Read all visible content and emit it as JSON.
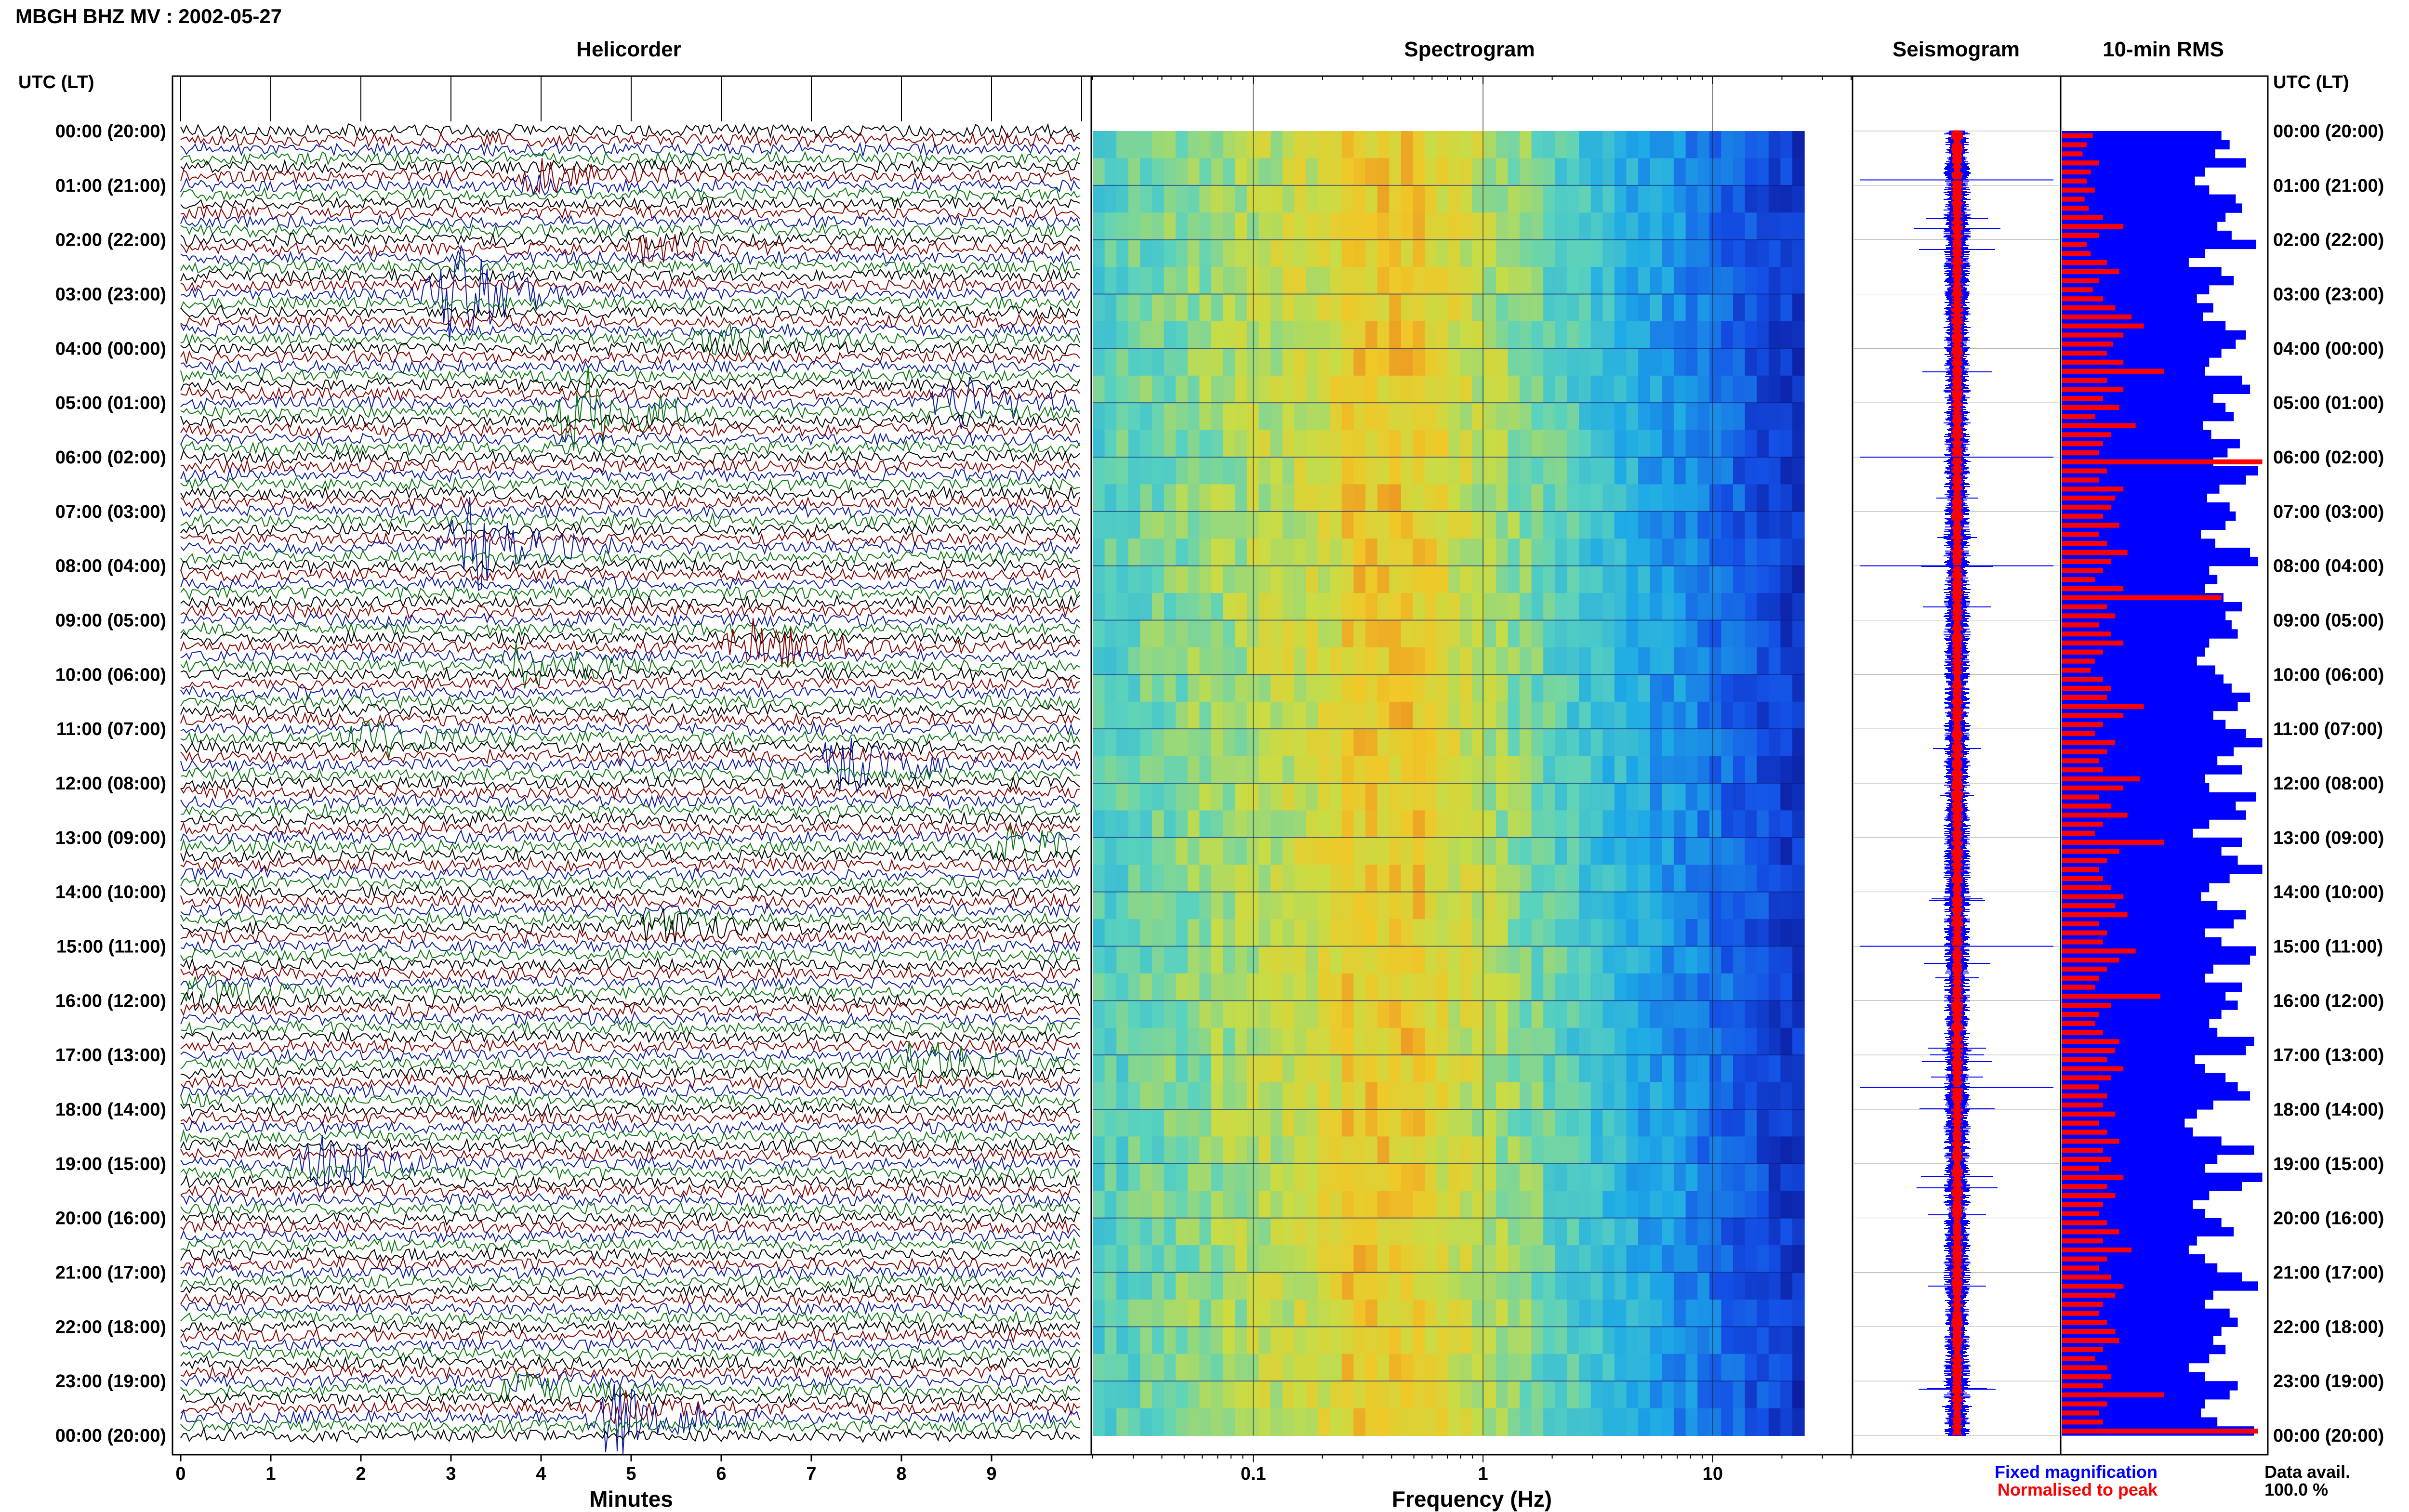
{
  "header": {
    "station_title": "MBGH BHZ MV : 2002-05-27",
    "utc_lt_label": "UTC (LT)"
  },
  "panels": {
    "helicorder_title": "Helicorder",
    "spectrogram_title": "Spectrogram",
    "seismogram_title": "Seismogram",
    "rms_title": "10-min RMS"
  },
  "legend": {
    "fixed_magnification": "Fixed magnification",
    "normalised_to_peak": "Normalised to peak",
    "data_avail_label": "Data avail.",
    "data_avail_value": "100.0 %"
  },
  "colors": {
    "trace_cycle": [
      "#000000",
      "#8b0000",
      "#0b1aa8",
      "#0a7a10"
    ],
    "fixed_magnification": "#0000ff",
    "normalised_to_peak": "#ff0000"
  },
  "chart_data": [
    {
      "type": "line",
      "name": "helicorder",
      "title": "Helicorder",
      "xlabel": "Minutes",
      "x_ticks": [
        "0",
        "1",
        "2",
        "3",
        "4",
        "5",
        "6",
        "7",
        "8",
        "9"
      ],
      "xlim": [
        0,
        10
      ],
      "row_labels": [
        "00:00 (20:00)",
        "01:00 (21:00)",
        "02:00 (22:00)",
        "03:00 (23:00)",
        "04:00 (00:00)",
        "05:00 (01:00)",
        "06:00 (02:00)",
        "07:00 (03:00)",
        "08:00 (04:00)",
        "09:00 (05:00)",
        "10:00 (06:00)",
        "11:00 (07:00)",
        "12:00 (08:00)",
        "13:00 (09:00)",
        "14:00 (10:00)",
        "15:00 (11:00)",
        "16:00 (12:00)",
        "17:00 (13:00)",
        "18:00 (14:00)",
        "19:00 (15:00)",
        "20:00 (16:00)",
        "21:00 (17:00)",
        "22:00 (18:00)",
        "23:00 (19:00)",
        "00:00 (20:00)"
      ],
      "traces_per_hour": 6,
      "events": [
        {
          "hour": 0.9,
          "minute": 4.0,
          "amplitude": 0.6,
          "color": "#0b1aa8"
        },
        {
          "hour": 2.1,
          "minute": 5.2,
          "amplitude": 0.5,
          "color": "#8b0000"
        },
        {
          "hour": 3.0,
          "minute": 3.0,
          "amplitude": 0.9,
          "color": "#0b1aa8"
        },
        {
          "hour": 3.9,
          "minute": 6.0,
          "amplitude": 0.6,
          "color": "#8b0000"
        },
        {
          "hour": 5.2,
          "minute": 4.4,
          "amplitude": 1.3,
          "color": "#000000"
        },
        {
          "hour": 5.0,
          "minute": 8.6,
          "amplitude": 0.5,
          "color": "#000000"
        },
        {
          "hour": 7.7,
          "minute": 3.2,
          "amplitude": 1.1,
          "color": "#8b0000"
        },
        {
          "hour": 9.5,
          "minute": 6.3,
          "amplitude": 0.5,
          "color": "#0a7a10"
        },
        {
          "hour": 9.8,
          "minute": 3.8,
          "amplitude": 0.6,
          "color": "#000000"
        },
        {
          "hour": 11.2,
          "minute": 2.1,
          "amplitude": 0.5,
          "color": "#8b0000"
        },
        {
          "hour": 11.7,
          "minute": 7.3,
          "amplitude": 0.7,
          "color": "#000000"
        },
        {
          "hour": 13.2,
          "minute": 9.3,
          "amplitude": 0.5,
          "color": "#000000"
        },
        {
          "hour": 14.6,
          "minute": 5.3,
          "amplitude": 0.8,
          "color": "#8b0000"
        },
        {
          "hour": 15.9,
          "minute": 0.3,
          "amplitude": 0.5,
          "color": "#8b0000"
        },
        {
          "hour": 17.2,
          "minute": 8.2,
          "amplitude": 0.7,
          "color": "#8b0000"
        },
        {
          "hour": 19.0,
          "minute": 1.6,
          "amplitude": 0.5,
          "color": "#0a7a10"
        },
        {
          "hour": 23.6,
          "minute": 4.8,
          "amplitude": 1.5,
          "color": "#0a7a10"
        },
        {
          "hour": 23.1,
          "minute": 3.8,
          "amplitude": 0.6,
          "color": "#0b1aa8"
        }
      ]
    },
    {
      "type": "heatmap",
      "name": "spectrogram",
      "title": "Spectrogram",
      "xlabel": "Frequency (Hz)",
      "x_scale": "log",
      "x_ticks": [
        "0.1",
        "1",
        "10"
      ],
      "xlim": [
        0.02,
        40
      ],
      "band_peak_hz": [
        0.25,
        0.5
      ],
      "spectrum_cutoff_hz": 25,
      "hours": 24
    },
    {
      "type": "line",
      "name": "seismogram",
      "title": "Seismogram",
      "series": [
        {
          "name": "Fixed magnification",
          "color": "#0000ff"
        },
        {
          "name": "Normalised to peak",
          "color": "#ff0000"
        }
      ],
      "hours": 24
    },
    {
      "type": "bar",
      "name": "10-min RMS",
      "title": "10-min RMS",
      "orientation": "horizontal",
      "row_labels": [
        "00:00 (20:00)",
        "01:00 (21:00)",
        "02:00 (22:00)",
        "03:00 (23:00)",
        "04:00 (00:00)",
        "05:00 (01:00)",
        "06:00 (02:00)",
        "07:00 (03:00)",
        "08:00 (04:00)",
        "09:00 (05:00)",
        "10:00 (06:00)",
        "11:00 (07:00)",
        "12:00 (08:00)",
        "13:00 (09:00)",
        "14:00 (10:00)",
        "15:00 (11:00)",
        "16:00 (12:00)",
        "17:00 (13:00)",
        "18:00 (14:00)",
        "19:00 (15:00)",
        "20:00 (16:00)",
        "21:00 (17:00)",
        "22:00 (18:00)",
        "23:00 (19:00)",
        "00:00 (20:00)"
      ],
      "series": [
        {
          "name": "Fixed magnification",
          "color": "#0000ff",
          "values": [
            0.78,
            0.82,
            0.75,
            0.9,
            0.7,
            0.65,
            0.72,
            0.85,
            0.88,
            0.8,
            0.76,
            0.83,
            0.95,
            0.7,
            0.62,
            0.78,
            0.84,
            0.72,
            0.66,
            0.74,
            0.69,
            0.8,
            0.9,
            0.85,
            0.78,
            0.72,
            0.7,
            0.88,
            0.92,
            0.74,
            0.8,
            0.84,
            0.69,
            0.73,
            0.87,
            0.81,
            0.74,
            0.96,
            0.9,
            0.77,
            0.71,
            0.82,
            0.85,
            0.8,
            0.68,
            0.75,
            0.92,
            0.96,
            0.72,
            0.76,
            0.7,
            0.79,
            0.88,
            0.8,
            0.83,
            0.86,
            0.72,
            0.7,
            0.66,
            0.75,
            0.79,
            0.83,
            0.92,
            0.86,
            0.74,
            0.8,
            0.9,
            0.98,
            0.84,
            0.76,
            0.88,
            0.7,
            0.72,
            0.95,
            0.85,
            0.9,
            0.72,
            0.64,
            0.88,
            0.78,
            0.86,
            0.98,
            0.82,
            0.72,
            0.68,
            0.76,
            0.9,
            0.84,
            0.7,
            0.78,
            0.95,
            0.92,
            0.74,
            0.7,
            0.88,
            0.8,
            0.86,
            0.78,
            0.72,
            0.76,
            0.94,
            0.9,
            0.65,
            0.7,
            0.8,
            0.86,
            0.92,
            0.74,
            0.66,
            0.6,
            0.64,
            0.78,
            0.94,
            0.76,
            0.7,
            0.98,
            0.88,
            0.72,
            0.64,
            0.7,
            0.78,
            0.84,
            0.66,
            0.62,
            0.7,
            0.76,
            0.88,
            0.96,
            0.74,
            0.7,
            0.82,
            0.86,
            0.78,
            0.74,
            0.8,
            0.72,
            0.62,
            0.7,
            0.86,
            0.82,
            0.7,
            0.68,
            0.76,
            0.94
          ]
        },
        {
          "name": "Normalised to peak",
          "color": "#ff0000",
          "values": [
            0.15,
            0.12,
            0.1,
            0.18,
            0.14,
            0.12,
            0.16,
            0.11,
            0.13,
            0.2,
            0.3,
            0.18,
            0.12,
            0.14,
            0.22,
            0.28,
            0.18,
            0.15,
            0.2,
            0.26,
            0.34,
            0.4,
            0.3,
            0.25,
            0.22,
            0.3,
            0.5,
            0.22,
            0.3,
            0.2,
            0.28,
            0.16,
            0.36,
            0.24,
            0.2,
            0.18,
            0.98,
            0.22,
            0.18,
            0.3,
            0.26,
            0.24,
            0.2,
            0.28,
            0.18,
            0.22,
            0.32,
            0.24,
            0.2,
            0.16,
            0.3,
            0.78,
            0.22,
            0.26,
            0.18,
            0.24,
            0.3,
            0.2,
            0.16,
            0.14,
            0.2,
            0.24,
            0.22,
            0.4,
            0.3,
            0.2,
            0.16,
            0.26,
            0.22,
            0.18,
            0.2,
            0.38,
            0.3,
            0.18,
            0.24,
            0.32,
            0.2,
            0.16,
            0.5,
            0.28,
            0.22,
            0.18,
            0.2,
            0.24,
            0.3,
            0.26,
            0.32,
            0.18,
            0.22,
            0.2,
            0.36,
            0.28,
            0.22,
            0.18,
            0.16,
            0.48,
            0.24,
            0.18,
            0.16,
            0.2,
            0.28,
            0.26,
            0.22,
            0.3,
            0.24,
            0.18,
            0.22,
            0.2,
            0.26,
            0.18,
            0.22,
            0.28,
            0.2,
            0.24,
            0.18,
            0.3,
            0.22,
            0.26,
            0.2,
            0.18,
            0.22,
            0.28,
            0.2,
            0.34,
            0.22,
            0.18,
            0.24,
            0.3,
            0.26,
            0.2,
            0.18,
            0.22,
            0.26,
            0.28,
            0.2,
            0.16,
            0.22,
            0.24,
            0.2,
            0.5,
            0.22,
            0.18,
            0.2,
            0.96
          ]
        }
      ]
    }
  ]
}
